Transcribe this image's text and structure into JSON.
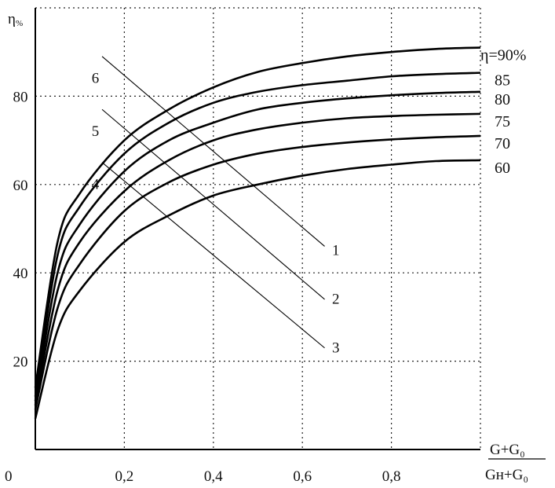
{
  "chart_data": {
    "type": "line",
    "ylabel": "η",
    "ylabel_sub": "%",
    "xlabel_numerator": "G+G₀",
    "xlabel_denominator": "Gн+G₀",
    "origin_label": "0",
    "xlim": [
      0,
      1.0
    ],
    "ylim": [
      0,
      100
    ],
    "x_ticks": [
      0.2,
      0.4,
      0.6,
      0.8
    ],
    "x_tick_labels": [
      "0,2",
      "0,4",
      "0,6",
      "0,8"
    ],
    "y_ticks": [
      20,
      40,
      60,
      80
    ],
    "y_tick_labels": [
      "20",
      "40",
      "60",
      "80"
    ],
    "grid": true,
    "series": [
      {
        "name": "η=90%",
        "x": [
          0,
          0.05,
          0.1,
          0.2,
          0.3,
          0.4,
          0.5,
          0.6,
          0.7,
          0.8,
          0.9,
          1.0
        ],
        "y": [
          14,
          47,
          58,
          70,
          77,
          82,
          85.5,
          87.5,
          89,
          90,
          90.7,
          91
        ]
      },
      {
        "name": "85",
        "x": [
          0,
          0.05,
          0.1,
          0.2,
          0.3,
          0.4,
          0.5,
          0.6,
          0.7,
          0.8,
          0.9,
          1.0
        ],
        "y": [
          12,
          44,
          55,
          67,
          74,
          78.5,
          81,
          82.5,
          83.5,
          84.5,
          85,
          85.3
        ]
      },
      {
        "name": "80",
        "x": [
          0,
          0.05,
          0.1,
          0.2,
          0.3,
          0.4,
          0.5,
          0.6,
          0.7,
          0.8,
          0.9,
          1.0
        ],
        "y": [
          11,
          40,
          51,
          63,
          70,
          74,
          77,
          78.5,
          79.5,
          80.2,
          80.7,
          81
        ]
      },
      {
        "name": "75",
        "x": [
          0,
          0.05,
          0.1,
          0.2,
          0.3,
          0.4,
          0.5,
          0.6,
          0.7,
          0.8,
          0.9,
          1.0
        ],
        "y": [
          10,
          36,
          47,
          58.5,
          65.5,
          70,
          72.5,
          74,
          75,
          75.5,
          75.8,
          76
        ]
      },
      {
        "name": "70",
        "x": [
          0,
          0.05,
          0.1,
          0.2,
          0.3,
          0.4,
          0.5,
          0.6,
          0.7,
          0.8,
          0.9,
          1.0
        ],
        "y": [
          9,
          32,
          42,
          54,
          60.5,
          64.5,
          67,
          68.5,
          69.5,
          70.2,
          70.7,
          71
        ]
      },
      {
        "name": "60",
        "x": [
          0,
          0.05,
          0.1,
          0.2,
          0.3,
          0.4,
          0.5,
          0.6,
          0.7,
          0.8,
          0.9,
          1.0
        ],
        "y": [
          7,
          27,
          36,
          47,
          53,
          57.5,
          60,
          62,
          63.5,
          64.5,
          65.3,
          65.5
        ]
      }
    ],
    "lines": [
      {
        "name": "6",
        "x": [
          0.15,
          0.65
        ],
        "y": [
          89,
          46
        ],
        "label_at": [
          0.135,
          83
        ]
      },
      {
        "name": "5",
        "x": [
          0.15,
          0.65
        ],
        "y": [
          77,
          34
        ],
        "label_at": [
          0.135,
          71
        ]
      },
      {
        "name": "4",
        "x": [
          0.15,
          0.65
        ],
        "y": [
          65,
          23
        ],
        "label_at": [
          0.135,
          59
        ]
      },
      {
        "name": "1",
        "x": [
          0.65,
          0.65
        ],
        "y": [
          46,
          46
        ],
        "label_at": [
          0.675,
          44
        ]
      },
      {
        "name": "2",
        "x": [
          0.65,
          0.65
        ],
        "y": [
          34,
          34
        ],
        "label_at": [
          0.675,
          33
        ]
      },
      {
        "name": "3",
        "x": [
          0.65,
          0.65
        ],
        "y": [
          23,
          23
        ],
        "label_at": [
          0.675,
          22
        ]
      }
    ]
  }
}
